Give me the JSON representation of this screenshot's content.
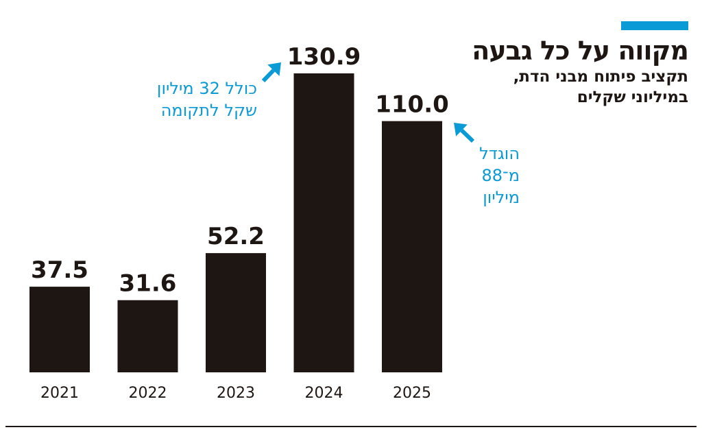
{
  "chart_data": {
    "type": "bar",
    "title": "מקווה על כל גבעה",
    "subtitle": "תקציב פיתוח מבני הדת, במיליוני שקלים",
    "categories": [
      "2021",
      "2022",
      "2023",
      "2024",
      "2025"
    ],
    "values": [
      37.5,
      31.6,
      52.2,
      130.9,
      110.0
    ],
    "value_labels": [
      "37.5",
      "31.6",
      "52.2",
      "130.9",
      "110.0"
    ],
    "xlabel": "",
    "ylabel": "",
    "ylim": [
      0,
      130.9
    ],
    "grid": false,
    "annotations": [
      {
        "category": "2024",
        "lines": [
          "כולל 32 מיליון",
          "שקל לתקומה"
        ]
      },
      {
        "category": "2025",
        "lines": [
          "הוגדל",
          "מ־88",
          "מיליון"
        ]
      }
    ],
    "colors": {
      "bar": "#1e1612",
      "accent": "#0a9ad6",
      "text": "#1e1612"
    }
  }
}
